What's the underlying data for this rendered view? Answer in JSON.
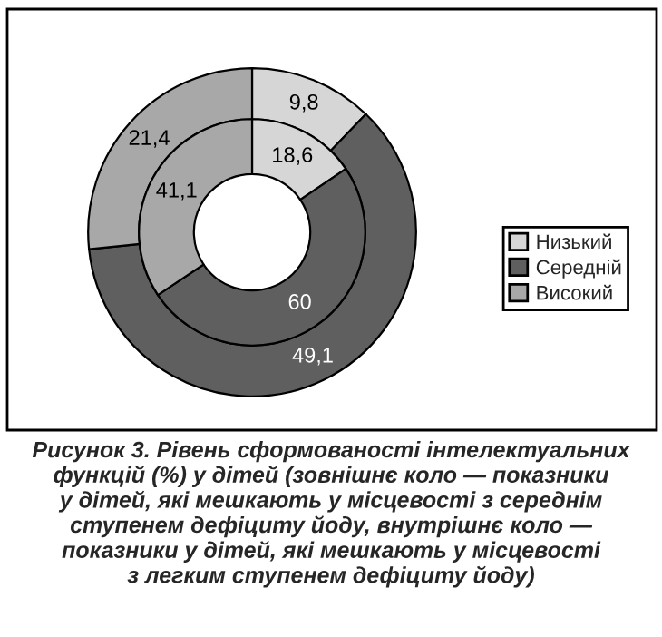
{
  "chart_data": {
    "type": "donut",
    "categories": [
      "Низький",
      "Середній",
      "Високий"
    ],
    "colors": [
      "#d6d6d6",
      "#5f5f5f",
      "#a8a8a8"
    ],
    "series": [
      {
        "values": [
          9.8,
          49.1,
          21.4
        ],
        "value_labels": [
          "9,8",
          "49,1",
          "21,4"
        ]
      },
      {
        "values": [
          18.6,
          60,
          41.1
        ],
        "value_labels": [
          "18,6",
          "60",
          "41,1"
        ]
      }
    ],
    "legend": "right",
    "annotations": [
      "Рисунок 3. Рівень сформованості інтелектуальних\nфункцій (%) у дітей (зовнішнє коло — показники\nу дітей, які мешкають у місцевості з середнім\nступенем дефіциту йоду, внутрішнє коло —\nпоказники у дітей, які мешкають у місцевості\nз легким ступенем дефіциту йоду)"
    ]
  }
}
